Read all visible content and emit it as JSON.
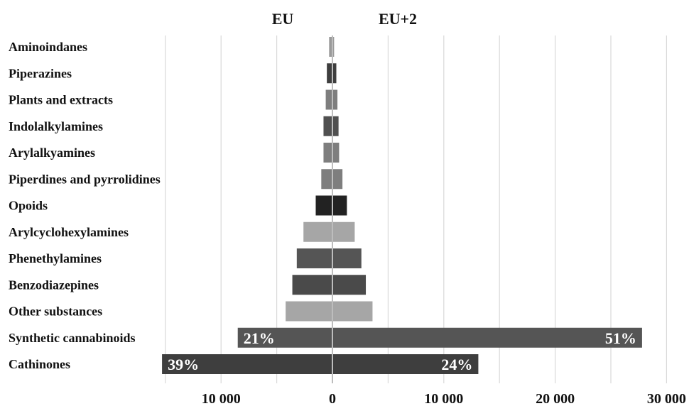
{
  "chart_data": {
    "type": "bar",
    "orientation": "horizontal-diverging",
    "series": [
      {
        "name": "EU",
        "values": [
          300,
          500,
          600,
          800,
          800,
          1000,
          1500,
          2600,
          3200,
          3600,
          4200,
          8500,
          15300
        ]
      },
      {
        "name": "EU+2",
        "values": [
          150,
          350,
          450,
          550,
          600,
          900,
          1300,
          2000,
          2600,
          3000,
          3600,
          27800,
          13100
        ]
      }
    ],
    "categories": [
      "Aminoindanes",
      "Piperazines",
      "Plants and extracts",
      "Indolalkylamines",
      "Arylalkyamines",
      "Piperdines and pyrrolidines",
      "Opoids",
      "Arylcyclohexylamines",
      "Phenethylamines",
      "Benzodiazepines",
      "Other substances",
      "Synthetic cannabinoids",
      "Cathinones"
    ],
    "bar_colors": [
      "#9a9a9a",
      "#3e3e3e",
      "#7e7e7e",
      "#505050",
      "#7e7e7e",
      "#7e7e7e",
      "#222222",
      "#a6a6a6",
      "#555555",
      "#4a4a4a",
      "#a6a6a6",
      "#555555",
      "#3e3e3e"
    ],
    "annotations": [
      {
        "category": "Synthetic cannabinoids",
        "series": "EU",
        "text": "21%"
      },
      {
        "category": "Synthetic cannabinoids",
        "series": "EU+2",
        "text": "51%"
      },
      {
        "category": "Cathinones",
        "series": "EU",
        "text": "39%"
      },
      {
        "category": "Cathinones",
        "series": "EU+2",
        "text": "24%"
      }
    ],
    "x_ticks": [
      {
        "value": -10000,
        "label": "10 000"
      },
      {
        "value": 0,
        "label": "0"
      },
      {
        "value": 10000,
        "label": "10 000"
      },
      {
        "value": 20000,
        "label": "20 000"
      },
      {
        "value": 30000,
        "label": "30 000"
      }
    ],
    "xlim": [
      -15000,
      30000
    ],
    "grid_step": 5000,
    "grid": true,
    "gridline_color": "#d9d9d9",
    "zero_line_color": "#bdbdbd",
    "label_color": "#111111",
    "annotation_color": "#ffffff",
    "title": "",
    "xlabel": "",
    "ylabel": ""
  }
}
